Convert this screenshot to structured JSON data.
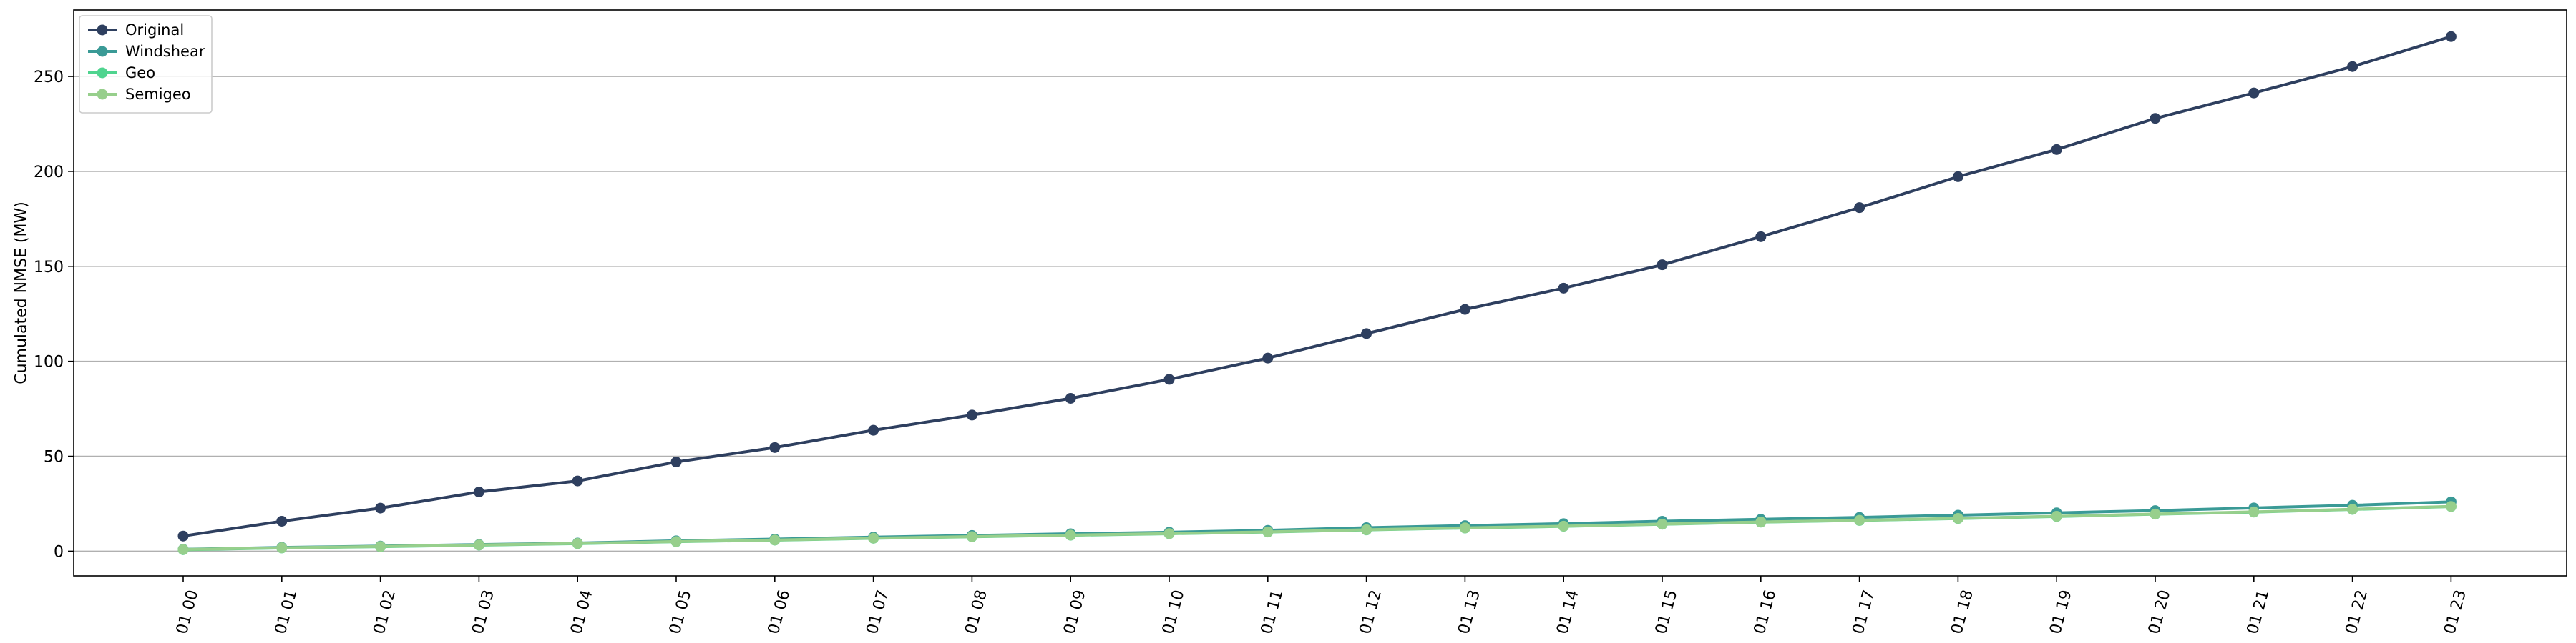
{
  "chart_data": {
    "type": "line",
    "title": "",
    "xlabel": "",
    "ylabel": "Cumulated NMSE (MW)",
    "categories": [
      "01 00",
      "01 01",
      "01 02",
      "01 03",
      "01 04",
      "01 05",
      "01 06",
      "01 07",
      "01 08",
      "01 09",
      "01 10",
      "01 11",
      "01 12",
      "01 13",
      "01 14",
      "01 15",
      "01 16",
      "01 17",
      "01 18",
      "01 19",
      "01 20",
      "01 21",
      "01 22",
      "01 23"
    ],
    "ylim": [
      -13,
      285
    ],
    "yticks": [
      0,
      50,
      100,
      150,
      200,
      250
    ],
    "grid": "horizontal",
    "legend_position": "top-left",
    "series": [
      {
        "name": "Original",
        "color": "#2e3f5f",
        "values": [
          8,
          15.8,
          22.7,
          31.2,
          37,
          47,
          54.6,
          63.7,
          71.7,
          80.5,
          90.5,
          101.7,
          114.6,
          127.3,
          138.5,
          150.8,
          165.6,
          180.9,
          197.2,
          211.5,
          227.9,
          241.3,
          255.2,
          271
        ]
      },
      {
        "name": "Windshear",
        "color": "#3a9a96",
        "values": [
          1,
          2,
          2.7,
          3.5,
          4.3,
          5.5,
          6.4,
          7.4,
          8.3,
          9.2,
          10,
          11,
          12.4,
          13.5,
          14.5,
          15.8,
          16.8,
          17.8,
          19,
          20.2,
          21.4,
          22.8,
          24.2,
          26
        ]
      },
      {
        "name": "Geo",
        "color": "#4fd48f",
        "values": [
          0.8,
          1.7,
          2.4,
          3.2,
          4,
          5,
          5.8,
          6.8,
          7.6,
          8.4,
          9.2,
          10.1,
          11.2,
          12.2,
          13.1,
          14.2,
          15.3,
          16.2,
          17.2,
          18.3,
          19.5,
          20.6,
          22,
          23.5
        ]
      },
      {
        "name": "Semigeo",
        "color": "#97cf8c",
        "values": [
          0.9,
          1.8,
          2.5,
          3.3,
          4.1,
          5.1,
          5.9,
          6.9,
          7.7,
          8.5,
          9.3,
          10.2,
          11.3,
          12.3,
          13.2,
          14.3,
          15.4,
          16.3,
          17.3,
          18.4,
          19.6,
          20.7,
          22.1,
          23.6
        ]
      }
    ]
  }
}
